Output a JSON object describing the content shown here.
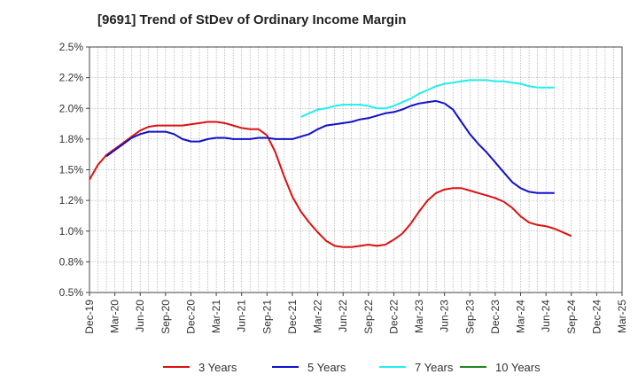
{
  "chart_data": {
    "type": "line",
    "title": "[9691]  Trend of StDev of Ordinary Income Margin",
    "xlabel": "",
    "ylabel": "",
    "x_tick_labels": [
      "Dec-19",
      "Mar-20",
      "Jun-20",
      "Sep-20",
      "Dec-20",
      "Mar-21",
      "Jun-21",
      "Sep-21",
      "Dec-21",
      "Mar-22",
      "Jun-22",
      "Sep-22",
      "Dec-22",
      "Mar-23",
      "Jun-23",
      "Sep-23",
      "Dec-23",
      "Mar-24",
      "Jun-24",
      "Sep-24",
      "Dec-24",
      "Mar-25"
    ],
    "y_tick_labels": [
      "2.5%",
      "2.2%",
      "2.0%",
      "1.8%",
      "1.5%",
      "1.2%",
      "1.0%",
      "0.8%",
      "0.5%"
    ],
    "ylim": [
      0.5,
      2.5
    ],
    "y_ticks": [
      2.5,
      2.25,
      2.0,
      1.75,
      1.5,
      1.25,
      1.0,
      0.75,
      0.5
    ],
    "grid": true,
    "legend_position": "bottom",
    "series": [
      {
        "name": "3 Years",
        "color": "#dd1111",
        "start_index": 0,
        "values": [
          1.42,
          1.54,
          1.62,
          1.67,
          1.72,
          1.77,
          1.82,
          1.85,
          1.86,
          1.86,
          1.86,
          1.86,
          1.87,
          1.88,
          1.89,
          1.89,
          1.88,
          1.86,
          1.84,
          1.83,
          1.83,
          1.78,
          1.64,
          1.45,
          1.28,
          1.16,
          1.07,
          0.99,
          0.92,
          0.88,
          0.87,
          0.87,
          0.88,
          0.89,
          0.88,
          0.89,
          0.93,
          0.98,
          1.06,
          1.16,
          1.25,
          1.31,
          1.34,
          1.35,
          1.35,
          1.33,
          1.31,
          1.29,
          1.27,
          1.24,
          1.19,
          1.12,
          1.07,
          1.05,
          1.04,
          1.02,
          0.99,
          0.96
        ]
      },
      {
        "name": "5 Years",
        "color": "#1111cc",
        "start_index": 2,
        "values": [
          1.61,
          1.66,
          1.71,
          1.76,
          1.79,
          1.81,
          1.81,
          1.81,
          1.79,
          1.75,
          1.73,
          1.73,
          1.75,
          1.76,
          1.76,
          1.75,
          1.75,
          1.75,
          1.76,
          1.76,
          1.75,
          1.75,
          1.75,
          1.77,
          1.79,
          1.83,
          1.86,
          1.87,
          1.88,
          1.89,
          1.91,
          1.92,
          1.94,
          1.96,
          1.97,
          1.99,
          2.02,
          2.04,
          2.05,
          2.06,
          2.04,
          1.99,
          1.89,
          1.79,
          1.71,
          1.64,
          1.56,
          1.48,
          1.4,
          1.35,
          1.32,
          1.31,
          1.31,
          1.31
        ]
      },
      {
        "name": "7 Years",
        "color": "#22eeee",
        "start_index": 25,
        "values": [
          1.93,
          1.96,
          1.99,
          2.0,
          2.02,
          2.03,
          2.03,
          2.03,
          2.02,
          2.0,
          2.0,
          2.02,
          2.05,
          2.08,
          2.12,
          2.15,
          2.18,
          2.2,
          2.21,
          2.22,
          2.23,
          2.23,
          2.23,
          2.22,
          2.22,
          2.21,
          2.2,
          2.18,
          2.17,
          2.17,
          2.17
        ]
      },
      {
        "name": "10 Years",
        "color": "#228822",
        "start_index": 0,
        "values": []
      }
    ]
  }
}
